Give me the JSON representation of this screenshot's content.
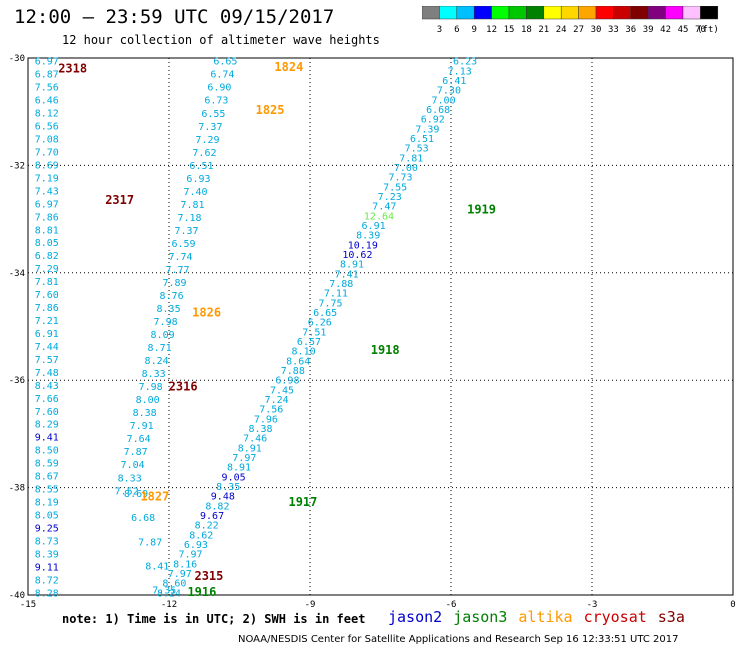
{
  "title": "12:00 – 23:59 UTC 09/15/2017",
  "subtitle": "12 hour collection of altimeter wave heights",
  "note": "note: 1) Time is in UTC; 2) SWH is in feet",
  "credit": "NOAA/NESDIS Center for Satellite Applications and Research   Sep 16 12:33:51 UTC 2017",
  "colorbar": {
    "unit": "(ft)",
    "ticks": [
      "3",
      "6",
      "9",
      "12",
      "15",
      "18",
      "21",
      "24",
      "27",
      "30",
      "33",
      "36",
      "39",
      "42",
      "45",
      "70"
    ],
    "colors": [
      "#7f7f7f",
      "#00ffff",
      "#00bfff",
      "#0000ff",
      "#00ff00",
      "#00c800",
      "#008200",
      "#ffff00",
      "#ffd700",
      "#ffa500",
      "#ff0000",
      "#c80000",
      "#800000",
      "#800080",
      "#ff00ff",
      "#ffc0ff",
      "#000000"
    ]
  },
  "satellites": [
    {
      "name": "jason2",
      "color": "#0000cc"
    },
    {
      "name": "jason3",
      "color": "#008000"
    },
    {
      "name": "altika",
      "color": "#ff9900"
    },
    {
      "name": "cryosat",
      "color": "#cc0000"
    },
    {
      "name": "s3a",
      "color": "#800000"
    }
  ],
  "chart_data": {
    "type": "scatter",
    "xlabel": "",
    "ylabel": "",
    "xlim": [
      -15,
      0
    ],
    "ylim": [
      -40,
      -30
    ],
    "x_ticks": [
      "-15",
      "-12",
      "-9",
      "-6",
      "-3",
      "0"
    ],
    "y_ticks": [
      "-30",
      "-32",
      "-34",
      "-36",
      "-38",
      "-40"
    ],
    "grid": true,
    "series": [
      {
        "name": "s3a",
        "color": "#00aadd",
        "x_start": -14.6,
        "y_start": -30.05,
        "x_end": -14.6,
        "y_end": -39.95,
        "values": [
          "6.97",
          "6.87",
          "7.56",
          "6.46",
          "8.12",
          "6.56",
          "7.08",
          "7.70",
          "8.69",
          "7.19",
          "7.43",
          "6.97",
          "7.86",
          "8.81",
          "8.05",
          "6.82",
          "7.29",
          "7.81",
          "7.60",
          "7.86",
          "7.21",
          "6.91",
          "7.44",
          "7.57",
          "7.48",
          "8.43",
          "7.66",
          "7.60",
          "8.29",
          "9.41",
          "8.50",
          "8.59",
          "8.67",
          "8.55",
          "8.19",
          "8.05",
          "9.25",
          "8.73",
          "8.39",
          "9.11",
          "8.72",
          "8.28"
        ],
        "deep": {
          "9.41": "#0000cc",
          "9.25": "#0000cc",
          "9.11": "#0000cc"
        }
      },
      {
        "name": "altika",
        "color": "#00aadd",
        "x_start": -10.8,
        "y_start": -30.05,
        "x_end": -12.9,
        "y_end": -38.05,
        "values": [
          "6.65",
          "6.74",
          "6.90",
          "6.73",
          "6.55",
          "7.37",
          "7.29",
          "7.62",
          "6.51",
          "6.93",
          "7.40",
          "7.81",
          "7.18",
          "7.37",
          "6.59",
          "7.74",
          "7.77",
          "7.89",
          "8.76",
          "8.35",
          "7.98",
          "8.09",
          "8.71",
          "8.24",
          "8.33",
          "7.98",
          "8.00",
          "8.38",
          "7.91",
          "7.64",
          "7.87",
          "7.04",
          "8.33",
          "7.52"
        ],
        "deep": {}
      },
      {
        "name": "jason3",
        "color": "#00aadd",
        "x_start": -5.7,
        "y_start": -30.05,
        "x_end": -12.0,
        "y_end": -39.95,
        "values": [
          "6.23",
          "7.13",
          "6.41",
          "7.30",
          "7.00",
          "6.68",
          "6.92",
          "7.39",
          "6.51",
          "7.53",
          "7.81",
          "7.00",
          "7.73",
          "7.55",
          "7.23",
          "7.47",
          "12.64",
          "6.91",
          "8.39",
          "10.19",
          "10.62",
          "8.91",
          "7.41",
          "7.88",
          "7.11",
          "7.75",
          "6.65",
          "6.26",
          "7.51",
          "6.57",
          "8.10",
          "8.64",
          "7.88",
          "6.98",
          "7.45",
          "7.24",
          "7.56",
          "7.96",
          "8.38",
          "7.46",
          "8.91",
          "7.97",
          "8.91",
          "9.05",
          "8.35",
          "9.48",
          "8.82",
          "9.67",
          "8.22",
          "8.62",
          "6.93",
          "7.97",
          "8.16",
          "7.97",
          "8.60",
          "8.24"
        ],
        "deep": {
          "10.19": "#0000cc",
          "10.62": "#0000cc",
          "9.05": "#0000cc",
          "9.48": "#0000cc",
          "9.67": "#0000cc",
          "12.64": "#66ee44"
        }
      },
      {
        "name": "cryosat",
        "color": "#00aadd",
        "x_start": -12.7,
        "y_start": -38.1,
        "x_end": -12.1,
        "y_end": -39.9,
        "values": [
          "8.69",
          "6.68",
          "7.87",
          "8.41",
          "7.35"
        ],
        "deep": {}
      }
    ],
    "annotations": [
      {
        "text": "2318",
        "x": -14.05,
        "y": -30.18,
        "color": "#800000"
      },
      {
        "text": "1824",
        "x": -9.45,
        "y": -30.15,
        "color": "#ff9900"
      },
      {
        "text": "1825",
        "x": -9.85,
        "y": -30.95,
        "color": "#ff9900"
      },
      {
        "text": "2317",
        "x": -13.05,
        "y": -32.63,
        "color": "#800000"
      },
      {
        "text": "1919",
        "x": -5.35,
        "y": -32.8,
        "color": "#008000"
      },
      {
        "text": "1826",
        "x": -11.2,
        "y": -34.72,
        "color": "#ff9900"
      },
      {
        "text": "1918",
        "x": -7.4,
        "y": -35.42,
        "color": "#008000"
      },
      {
        "text": "2316",
        "x": -11.7,
        "y": -36.1,
        "color": "#800000"
      },
      {
        "text": "1827",
        "x": -12.3,
        "y": -38.15,
        "color": "#ff9900"
      },
      {
        "text": "1917",
        "x": -9.15,
        "y": -38.25,
        "color": "#008000"
      },
      {
        "text": "2315",
        "x": -11.15,
        "y": -39.63,
        "color": "#800000"
      },
      {
        "text": "1916",
        "x": -11.3,
        "y": -39.93,
        "color": "#008000"
      }
    ]
  }
}
